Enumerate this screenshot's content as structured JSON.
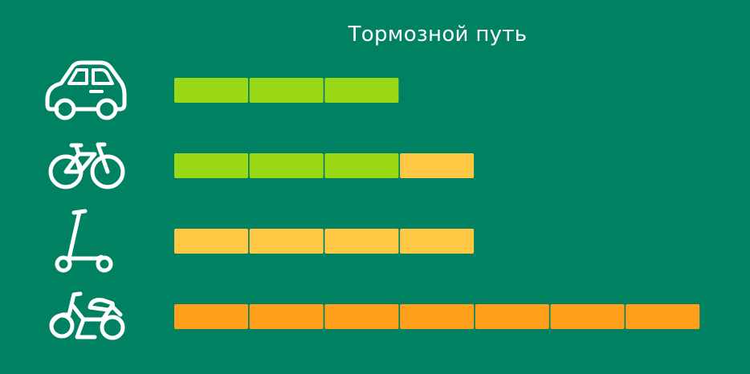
{
  "chart_data": {
    "type": "bar",
    "title": "Тормозной путь",
    "categories": [
      "car-icon",
      "bicycle-icon",
      "kick-scooter-icon",
      "moped-icon"
    ],
    "segments": [
      [
        {
          "count": 3,
          "color": "#9BD815"
        }
      ],
      [
        {
          "count": 3,
          "color": "#9BD815"
        },
        {
          "count": 1,
          "color": "#FEC845"
        }
      ],
      [
        {
          "count": 4,
          "color": "#FEC845"
        }
      ],
      [
        {
          "count": 7,
          "color": "#FF9F1C"
        }
      ]
    ],
    "values": [
      3,
      4,
      4,
      7
    ],
    "xlim": [
      0,
      7
    ]
  },
  "colors": {
    "background": "#008262",
    "icon": "#FFFFFF",
    "green": "#9BD815",
    "yellow": "#FEC845",
    "orange": "#FF9F1C"
  }
}
